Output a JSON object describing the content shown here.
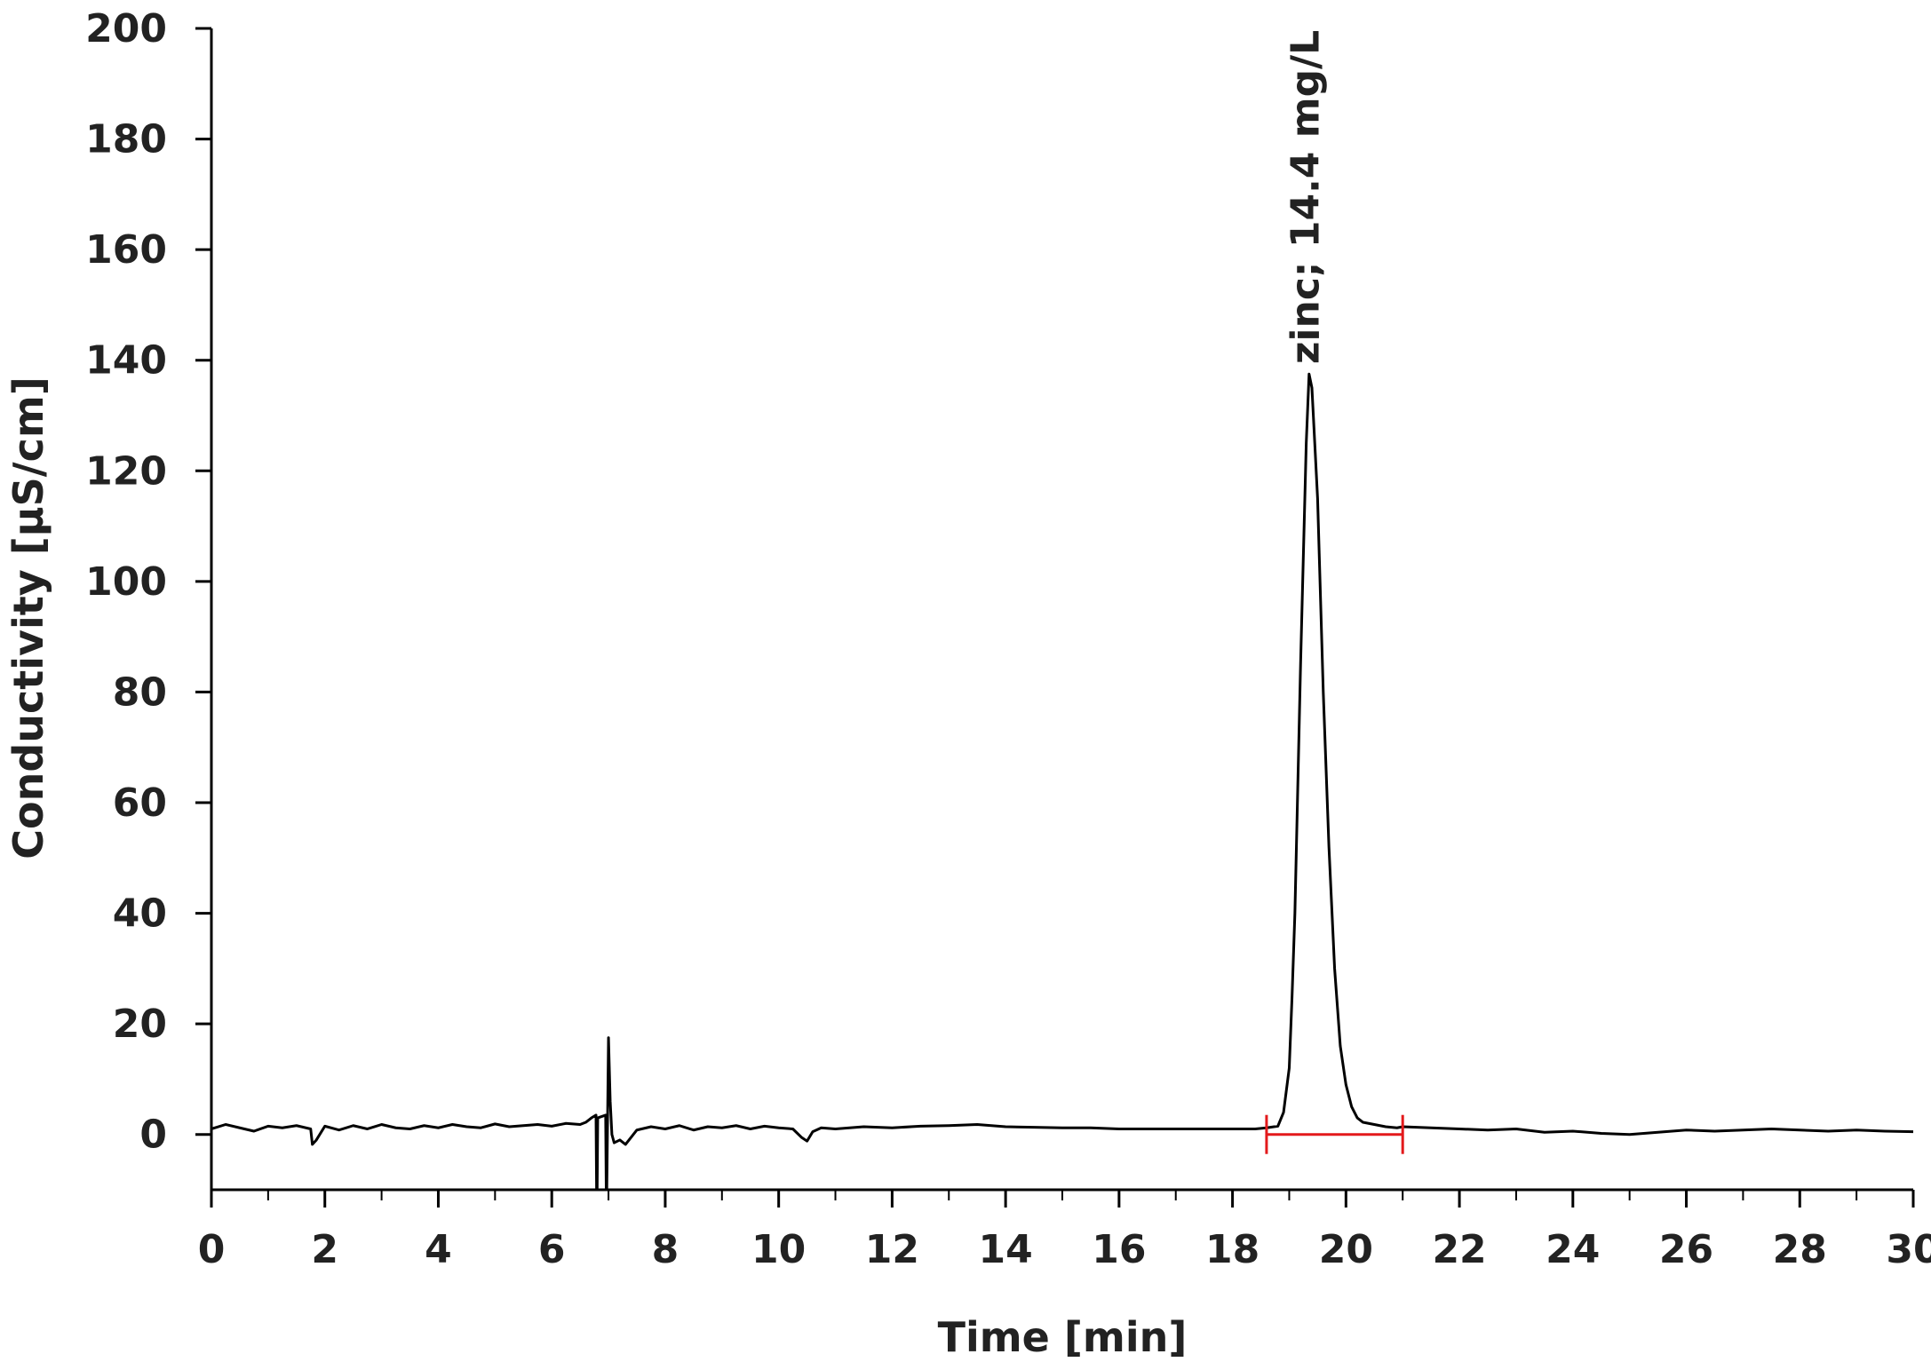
{
  "chart_data": {
    "type": "line",
    "title": "",
    "xlabel": "Time [min]",
    "ylabel": "Conductivity [µS/cm]",
    "xlim": [
      0,
      30
    ],
    "ylim": [
      -10,
      200
    ],
    "x_ticks": [
      0,
      2,
      4,
      6,
      8,
      10,
      12,
      14,
      16,
      18,
      20,
      22,
      24,
      26,
      28,
      30
    ],
    "y_ticks": [
      0,
      20,
      40,
      60,
      80,
      100,
      120,
      140,
      160,
      180,
      200
    ],
    "grid": false,
    "legend": "none",
    "series": [
      {
        "color": "#000000",
        "x": [
          0,
          0.25,
          0.5,
          0.75,
          1.0,
          1.25,
          1.5,
          1.75,
          1.78,
          1.85,
          2.0,
          2.25,
          2.5,
          2.75,
          3.0,
          3.25,
          3.5,
          3.75,
          4.0,
          4.25,
          4.5,
          4.75,
          5.0,
          5.25,
          5.5,
          5.75,
          6.0,
          6.25,
          6.5,
          6.6,
          6.7,
          6.78,
          6.79,
          6.8,
          6.81,
          6.95,
          6.96,
          6.97,
          7.0,
          7.03,
          7.06,
          7.1,
          7.2,
          7.3,
          7.4,
          7.5,
          7.75,
          8.0,
          8.25,
          8.5,
          8.75,
          9.0,
          9.25,
          9.5,
          9.75,
          10.0,
          10.25,
          10.4,
          10.5,
          10.6,
          10.75,
          11.0,
          11.5,
          12.0,
          12.5,
          13.0,
          13.5,
          14.0,
          14.5,
          15.0,
          15.5,
          16.0,
          16.5,
          17.0,
          17.5,
          18.0,
          18.4,
          18.6,
          18.8,
          18.9,
          19.0,
          19.05,
          19.1,
          19.2,
          19.3,
          19.35,
          19.4,
          19.5,
          19.6,
          19.7,
          19.8,
          19.9,
          20.0,
          20.1,
          20.2,
          20.3,
          20.5,
          20.7,
          20.9,
          21.0,
          21.5,
          22.0,
          22.5,
          23.0,
          23.5,
          24.0,
          24.5,
          25.0,
          25.5,
          26.0,
          26.5,
          27.0,
          27.5,
          28.0,
          28.5,
          29.0,
          29.5,
          30.0
        ],
        "y": [
          1.0,
          1.8,
          1.2,
          0.6,
          1.5,
          1.2,
          1.6,
          1.0,
          -1.8,
          -1.0,
          1.5,
          0.8,
          1.6,
          1.0,
          1.8,
          1.2,
          1.0,
          1.6,
          1.2,
          1.8,
          1.4,
          1.2,
          1.9,
          1.4,
          1.6,
          1.8,
          1.5,
          2.0,
          1.8,
          2.2,
          3.0,
          3.5,
          -10,
          -10,
          3.0,
          3.5,
          -10,
          -10,
          17.5,
          6.0,
          0.0,
          -1.5,
          -1.0,
          -1.8,
          -0.5,
          0.8,
          1.4,
          1.0,
          1.6,
          0.8,
          1.4,
          1.2,
          1.6,
          1.0,
          1.5,
          1.2,
          1.0,
          -0.5,
          -1.2,
          0.5,
          1.2,
          1.0,
          1.4,
          1.2,
          1.5,
          1.6,
          1.8,
          1.4,
          1.3,
          1.2,
          1.2,
          1.0,
          1.0,
          1.0,
          1.0,
          1.0,
          1.0,
          1.2,
          1.5,
          4.0,
          12.0,
          25.0,
          40.0,
          85.0,
          125.0,
          137.5,
          135.0,
          115.0,
          80.0,
          52.0,
          30.0,
          16.0,
          9.0,
          5.0,
          3.0,
          2.2,
          1.8,
          1.4,
          1.2,
          1.4,
          1.2,
          1.0,
          0.8,
          1.0,
          0.4,
          0.6,
          0.2,
          0.0,
          0.4,
          0.8,
          0.6,
          0.8,
          1.0,
          0.8,
          0.6,
          0.8,
          0.6,
          0.5
        ]
      }
    ],
    "annotations": [
      {
        "text": "zinc; 14.4 mg/L",
        "x": 19.3,
        "y": 138
      }
    ],
    "integration_marker": {
      "color": "#e31a1c",
      "x_start": 18.6,
      "x_end": 21.0,
      "y": 0
    }
  }
}
